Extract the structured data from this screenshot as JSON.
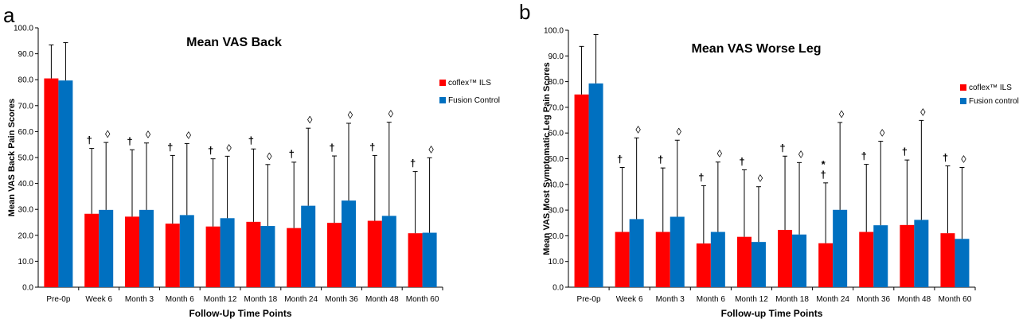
{
  "chart_data": [
    {
      "type": "bar",
      "panel_label": "a",
      "title": "Mean VAS Back",
      "xlabel": "Follow-Up Time Points",
      "ylabel": "Mean VAS Back Pain Scores",
      "ylim": [
        0,
        100
      ],
      "yticks": [
        "0.0",
        "10.0",
        "20.0",
        "30.0",
        "40.0",
        "50.0",
        "60.0",
        "70.0",
        "80.0",
        "90.0",
        "100.0"
      ],
      "categories": [
        "Pre-0p",
        "Week 6",
        "Month 3",
        "Month 6",
        "Month 12",
        "Month 18",
        "Month 24",
        "Month 36",
        "Month 48",
        "Month 60"
      ],
      "legend_position": "right",
      "series": [
        {
          "name": "coflex™ ILS",
          "color": "#ff0000",
          "values": [
            80.5,
            28.3,
            27.2,
            24.5,
            23.4,
            25.2,
            22.8,
            24.8,
            25.6,
            20.8
          ],
          "error_upper": [
            93.4,
            53.5,
            53.0,
            50.8,
            49.5,
            53.3,
            48.2,
            50.6,
            50.8,
            44.6
          ]
        },
        {
          "name": "Fusion Control",
          "color": "#0070c0",
          "values": [
            79.7,
            29.8,
            29.8,
            27.8,
            26.6,
            23.6,
            31.4,
            33.4,
            27.5,
            21.0
          ],
          "error_upper": [
            94.3,
            55.8,
            55.6,
            55.4,
            50.5,
            47.3,
            61.3,
            63.2,
            63.6,
            49.9
          ]
        }
      ],
      "annotations": {
        "coflex™ ILS": [
          "",
          "†",
          "†",
          "†",
          "†",
          "†",
          "†",
          "†",
          "†",
          "†"
        ],
        "Fusion Control": [
          "",
          "◊",
          "◊",
          "◊",
          "◊",
          "◊",
          "◊",
          "◊",
          "◊",
          "◊"
        ]
      }
    },
    {
      "type": "bar",
      "panel_label": "b",
      "title": "Mean VAS Worse Leg",
      "xlabel": "Follow-up Time Points",
      "ylabel": "Mean VAS Most Symptomatic Leg Pain Scores",
      "ylim": [
        0,
        100
      ],
      "yticks": [
        "0.0",
        "10.0",
        "20.0",
        "30.0",
        "40.0",
        "50.0",
        "60.0",
        "70.0",
        "80.0",
        "90.0",
        "100.0"
      ],
      "categories": [
        "Pre-0p",
        "Week 6",
        "Month 3",
        "Month 6",
        "Month 12",
        "Month 18",
        "Month 24",
        "Month 36",
        "Month 48",
        "Month 60"
      ],
      "legend_position": "right",
      "series": [
        {
          "name": "coflex™ ILS",
          "color": "#ff0000",
          "values": [
            75.0,
            21.5,
            21.5,
            17.0,
            19.6,
            22.3,
            17.1,
            21.5,
            24.2,
            21.0
          ],
          "error_upper": [
            93.7,
            46.6,
            46.4,
            39.5,
            45.7,
            51.0,
            40.6,
            47.8,
            49.5,
            47.2
          ]
        },
        {
          "name": "Fusion control",
          "color": "#0070c0",
          "values": [
            79.3,
            26.5,
            27.4,
            21.5,
            17.6,
            20.5,
            30.1,
            24.1,
            26.2,
            18.8
          ],
          "error_upper": [
            98.3,
            58.1,
            57.2,
            48.7,
            39.1,
            48.5,
            64.1,
            56.8,
            64.9,
            46.6
          ]
        }
      ],
      "annotations": {
        "coflex™ ILS": [
          "",
          "†",
          "†",
          "†",
          "†",
          "†",
          "*\n†",
          "†",
          "†",
          "†"
        ],
        "Fusion control": [
          "",
          "◊",
          "◊",
          "◊",
          "◊",
          "◊",
          "◊",
          "◊",
          "◊",
          "◊"
        ]
      }
    }
  ]
}
